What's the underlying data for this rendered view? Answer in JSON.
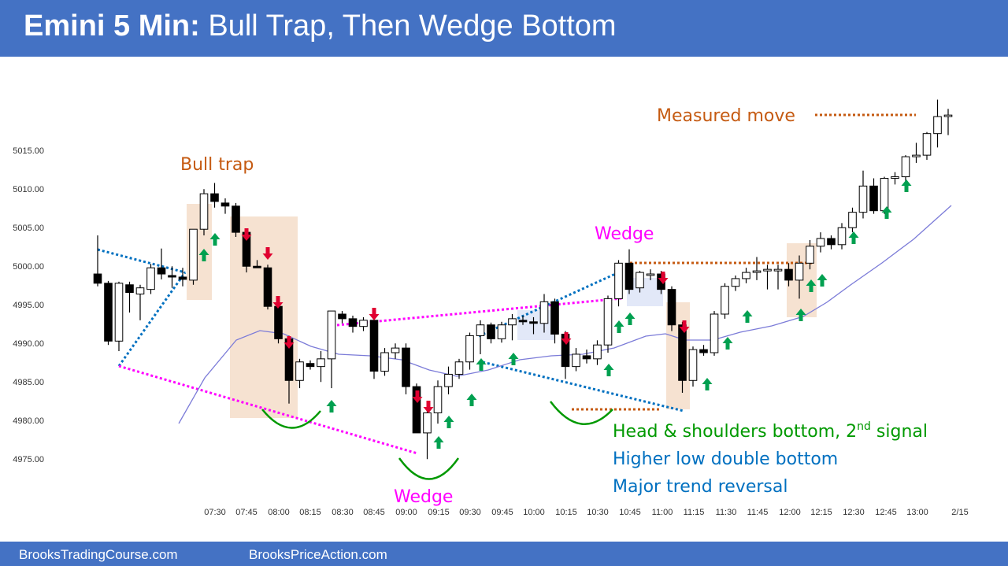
{
  "header": {
    "title_bold": "Emini 5 Min:",
    "title_rest": "Bull Trap, Then Wedge Bottom"
  },
  "footer": {
    "left_link": "BrooksTradingCourse.com",
    "right_link": "BrooksPriceAction.com"
  },
  "colors": {
    "header_bg": "#4472c4",
    "bull_trap": "#c55a11",
    "wedge": "#ff00ff",
    "green": "#009900",
    "blue": "#0070c0",
    "arrow_up": "#00a050",
    "arrow_down": "#e00030",
    "ema": "#7b7bd8",
    "box": "#f4ddc9"
  },
  "chart_data": {
    "type": "candlestick",
    "title": "",
    "y_ticks": [
      "5015.00",
      "5010.00",
      "5005.00",
      "5000.00",
      "4995.00",
      "4990.00",
      "4985.00",
      "4980.00",
      "4975.00"
    ],
    "x_ticks": [
      "07:30",
      "07:45",
      "08:00",
      "08:15",
      "08:30",
      "08:45",
      "09:00",
      "09:15",
      "09:30",
      "09:45",
      "10:00",
      "10:15",
      "10:30",
      "10:45",
      "11:00",
      "11:15",
      "11:30",
      "11:45",
      "12:00",
      "12:15",
      "12:30",
      "12:45",
      "13:00",
      "2/15"
    ],
    "ylim": [
      4972,
      5021
    ],
    "bar_count": 81,
    "candles": [
      {
        "o": 4997.2,
        "h": 5002.2,
        "l": 4995.6,
        "c": 4996.0
      },
      {
        "o": 4996.0,
        "h": 4996.3,
        "l": 4988.0,
        "c": 4988.5
      },
      {
        "o": 4988.5,
        "h": 4996.2,
        "l": 4987.2,
        "c": 4996.0
      },
      {
        "o": 4995.8,
        "h": 4996.2,
        "l": 4992.2,
        "c": 4994.8
      },
      {
        "o": 4994.6,
        "h": 4995.8,
        "l": 4991.2,
        "c": 4995.4
      },
      {
        "o": 4995.2,
        "h": 4998.5,
        "l": 4994.6,
        "c": 4998.0
      },
      {
        "o": 4998.0,
        "h": 5000.5,
        "l": 4996.5,
        "c": 4997.2
      },
      {
        "o": 4997.0,
        "h": 4998.2,
        "l": 4995.4,
        "c": 4996.8
      },
      {
        "o": 4996.8,
        "h": 4998.0,
        "l": 4995.6,
        "c": 4996.5
      },
      {
        "o": 4996.4,
        "h": 5003.0,
        "l": 4995.8,
        "c": 5003.0
      },
      {
        "o": 5003.0,
        "h": 5008.2,
        "l": 5002.2,
        "c": 5007.6
      },
      {
        "o": 5007.6,
        "h": 5009.0,
        "l": 5005.8,
        "c": 5006.6
      },
      {
        "o": 5006.4,
        "h": 5007.0,
        "l": 5005.0,
        "c": 5006.0
      },
      {
        "o": 5006.0,
        "h": 5006.4,
        "l": 5002.0,
        "c": 5002.6
      },
      {
        "o": 5002.6,
        "h": 5002.8,
        "l": 4997.4,
        "c": 4998.2
      },
      {
        "o": 4998.2,
        "h": 4999.0,
        "l": 4998.0,
        "c": 4998.0
      },
      {
        "o": 4998.0,
        "h": 4998.4,
        "l": 4992.6,
        "c": 4993.0
      },
      {
        "o": 4993.0,
        "h": 4993.4,
        "l": 4988.2,
        "c": 4988.8
      },
      {
        "o": 4988.8,
        "h": 4989.2,
        "l": 4980.4,
        "c": 4983.4
      },
      {
        "o": 4983.4,
        "h": 4986.2,
        "l": 4982.4,
        "c": 4985.8
      },
      {
        "o": 4985.6,
        "h": 4986.0,
        "l": 4984.8,
        "c": 4985.2
      },
      {
        "o": 4985.2,
        "h": 4987.2,
        "l": 4983.2,
        "c": 4986.2
      },
      {
        "o": 4986.2,
        "h": 4992.4,
        "l": 4982.4,
        "c": 4992.4
      },
      {
        "o": 4992.0,
        "h": 4992.4,
        "l": 4990.8,
        "c": 4991.4
      },
      {
        "o": 4991.4,
        "h": 4991.8,
        "l": 4989.6,
        "c": 4990.4
      },
      {
        "o": 4990.4,
        "h": 4991.6,
        "l": 4989.8,
        "c": 4991.2
      },
      {
        "o": 4991.2,
        "h": 4991.6,
        "l": 4983.6,
        "c": 4984.6
      },
      {
        "o": 4984.6,
        "h": 4987.6,
        "l": 4984.0,
        "c": 4987.0
      },
      {
        "o": 4987.0,
        "h": 4988.2,
        "l": 4986.2,
        "c": 4987.6
      },
      {
        "o": 4987.6,
        "h": 4988.2,
        "l": 4981.6,
        "c": 4982.6
      },
      {
        "o": 4982.6,
        "h": 4983.0,
        "l": 4976.6,
        "c": 4976.6
      },
      {
        "o": 4976.6,
        "h": 4980.0,
        "l": 4973.2,
        "c": 4979.2
      },
      {
        "o": 4979.2,
        "h": 4983.4,
        "l": 4977.8,
        "c": 4982.6
      },
      {
        "o": 4982.6,
        "h": 4985.2,
        "l": 4981.6,
        "c": 4984.2
      },
      {
        "o": 4984.2,
        "h": 4986.2,
        "l": 4983.6,
        "c": 4985.8
      },
      {
        "o": 4985.8,
        "h": 4989.6,
        "l": 4984.8,
        "c": 4989.2
      },
      {
        "o": 4989.2,
        "h": 4991.2,
        "l": 4986.8,
        "c": 4990.6
      },
      {
        "o": 4990.6,
        "h": 4990.9,
        "l": 4988.2,
        "c": 4988.8
      },
      {
        "o": 4988.8,
        "h": 4991.0,
        "l": 4988.3,
        "c": 4990.6
      },
      {
        "o": 4990.6,
        "h": 4992.0,
        "l": 4988.6,
        "c": 4991.4
      },
      {
        "o": 4991.2,
        "h": 4991.8,
        "l": 4990.6,
        "c": 4991.0
      },
      {
        "o": 4991.0,
        "h": 4991.6,
        "l": 4989.4,
        "c": 4990.8
      },
      {
        "o": 4990.8,
        "h": 4994.6,
        "l": 4989.6,
        "c": 4993.6
      },
      {
        "o": 4993.6,
        "h": 4994.0,
        "l": 4988.2,
        "c": 4989.4
      },
      {
        "o": 4989.4,
        "h": 4989.8,
        "l": 4983.6,
        "c": 4985.2
      },
      {
        "o": 4985.2,
        "h": 4987.6,
        "l": 4984.6,
        "c": 4986.8
      },
      {
        "o": 4986.6,
        "h": 4987.4,
        "l": 4985.6,
        "c": 4986.2
      },
      {
        "o": 4986.2,
        "h": 4988.6,
        "l": 4985.4,
        "c": 4988.0
      },
      {
        "o": 4988.0,
        "h": 4994.4,
        "l": 4987.0,
        "c": 4994.0
      },
      {
        "o": 4994.0,
        "h": 4999.0,
        "l": 4993.0,
        "c": 4998.6
      },
      {
        "o": 4998.6,
        "h": 5000.4,
        "l": 4994.6,
        "c": 4995.2
      },
      {
        "o": 4995.4,
        "h": 4997.6,
        "l": 4994.8,
        "c": 4997.4
      },
      {
        "o": 4997.2,
        "h": 4997.8,
        "l": 4996.4,
        "c": 4997.2
      },
      {
        "o": 4997.2,
        "h": 4997.6,
        "l": 4994.6,
        "c": 4995.2
      },
      {
        "o": 4995.2,
        "h": 4995.6,
        "l": 4989.8,
        "c": 4990.6
      },
      {
        "o": 4990.6,
        "h": 4991.0,
        "l": 4981.8,
        "c": 4983.4
      },
      {
        "o": 4983.4,
        "h": 4987.8,
        "l": 4982.6,
        "c": 4987.4
      },
      {
        "o": 4987.4,
        "h": 4988.0,
        "l": 4986.6,
        "c": 4987.0
      },
      {
        "o": 4987.0,
        "h": 4992.4,
        "l": 4986.6,
        "c": 4992.0
      },
      {
        "o": 4992.0,
        "h": 4996.0,
        "l": 4991.4,
        "c": 4995.6
      },
      {
        "o": 4995.6,
        "h": 4997.0,
        "l": 4995.0,
        "c": 4996.6
      },
      {
        "o": 4996.6,
        "h": 4998.0,
        "l": 4996.0,
        "c": 4997.4
      },
      {
        "o": 4997.4,
        "h": 4999.4,
        "l": 4996.4,
        "c": 4997.6
      },
      {
        "o": 4997.6,
        "h": 4998.4,
        "l": 4995.2,
        "c": 4997.8
      },
      {
        "o": 4997.6,
        "h": 4998.4,
        "l": 4995.2,
        "c": 4997.8
      },
      {
        "o": 4997.8,
        "h": 4998.6,
        "l": 4995.6,
        "c": 4996.4
      },
      {
        "o": 4996.4,
        "h": 4999.6,
        "l": 4994.0,
        "c": 4998.6
      },
      {
        "o": 4998.6,
        "h": 5001.6,
        "l": 4997.8,
        "c": 5000.8
      },
      {
        "o": 5000.8,
        "h": 5002.6,
        "l": 5000.0,
        "c": 5001.8
      },
      {
        "o": 5001.8,
        "h": 5002.2,
        "l": 5000.4,
        "c": 5001.0
      },
      {
        "o": 5001.0,
        "h": 5003.8,
        "l": 5000.4,
        "c": 5003.2
      },
      {
        "o": 5003.2,
        "h": 5005.8,
        "l": 5002.6,
        "c": 5005.2
      },
      {
        "o": 5005.2,
        "h": 5010.6,
        "l": 5004.4,
        "c": 5008.6
      },
      {
        "o": 5008.6,
        "h": 5009.6,
        "l": 5005.0,
        "c": 5005.4
      },
      {
        "o": 5005.4,
        "h": 5009.8,
        "l": 5005.0,
        "c": 5009.6
      },
      {
        "o": 5009.6,
        "h": 5010.4,
        "l": 5008.8,
        "c": 5009.8
      },
      {
        "o": 5009.8,
        "h": 5012.6,
        "l": 5008.4,
        "c": 5012.4
      },
      {
        "o": 5012.4,
        "h": 5014.2,
        "l": 5011.6,
        "c": 5012.6
      },
      {
        "o": 5012.6,
        "h": 5015.6,
        "l": 5012.0,
        "c": 5015.4
      },
      {
        "o": 5015.4,
        "h": 5019.8,
        "l": 5013.6,
        "c": 5017.6
      },
      {
        "o": 5017.6,
        "h": 5018.6,
        "l": 5015.2,
        "c": 5017.8
      }
    ],
    "annotations": {
      "bull_trap": "Bull trap",
      "wedge_top": "Wedge",
      "wedge_bottom": "Wedge",
      "measured_move": "Measured move",
      "hs_main": "Head & shoulders bottom, 2",
      "hs_sup": "nd",
      "hs_tail": " signal",
      "higher_low": "Higher low double bottom",
      "major_reversal": "Major trend reversal"
    }
  }
}
